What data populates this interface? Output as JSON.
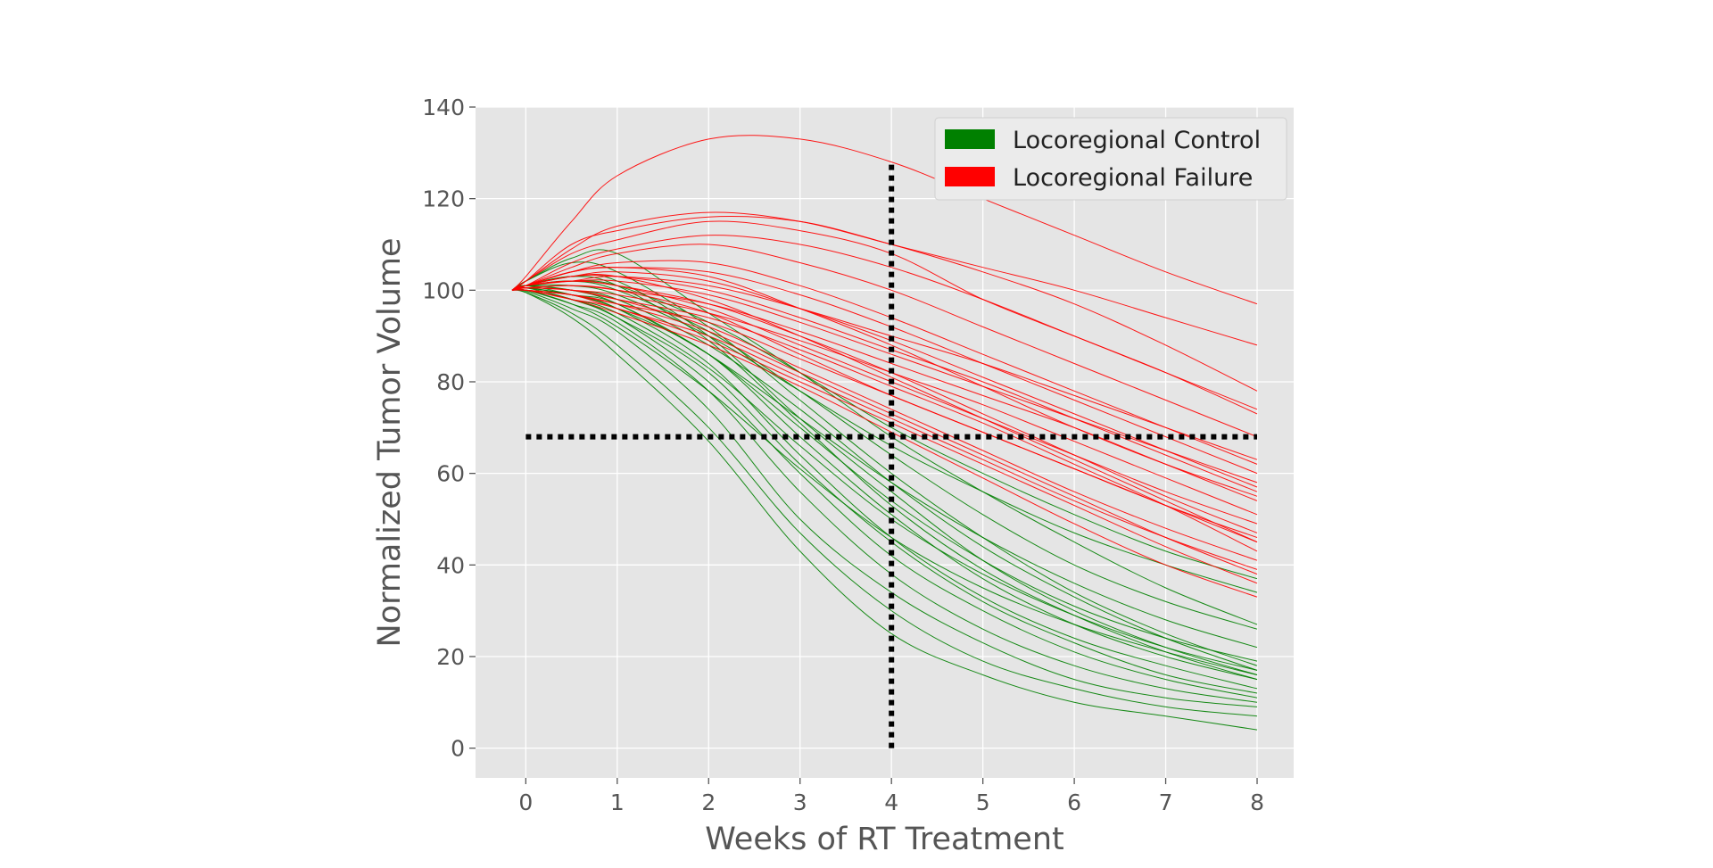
{
  "chart_data": {
    "type": "line",
    "title": "",
    "xlabel": "Weeks of RT Treatment",
    "ylabel": "Normalized Tumor Volume",
    "xlim": [
      -0.55,
      8.4
    ],
    "ylim": [
      -6.5,
      140
    ],
    "xticks": [
      0,
      1,
      2,
      3,
      4,
      5,
      6,
      7,
      8
    ],
    "yticks": [
      0,
      20,
      40,
      60,
      80,
      100,
      120,
      140
    ],
    "grid": true,
    "background": "#e5e5e5",
    "legend": {
      "placement": "top-right",
      "entries": [
        {
          "label": "Locoregional Control",
          "color": "#008000"
        },
        {
          "label": "Locoregional Failure",
          "color": "#ff0000"
        }
      ]
    },
    "reference_lines": [
      {
        "orientation": "horizontal",
        "y": 68,
        "x_from": 0,
        "x_to": 8,
        "style": "dotted",
        "color": "#000000"
      },
      {
        "orientation": "vertical",
        "x": 4,
        "y_from": 0,
        "y_to": 128,
        "style": "dotted",
        "color": "#000000"
      }
    ],
    "x": [
      -0.15,
      0,
      0.5,
      1,
      2,
      3,
      4,
      5,
      6,
      7,
      8
    ],
    "series": [
      {
        "group": "Locoregional Control",
        "color": "#008000",
        "values": [
          100,
          99.5,
          95,
          88,
          70,
          47,
          30,
          19,
          13,
          9,
          7
        ]
      },
      {
        "group": "Locoregional Control",
        "color": "#008000",
        "values": [
          100,
          99.8,
          96,
          91,
          74,
          50,
          34,
          23,
          15,
          11,
          9
        ]
      },
      {
        "group": "Locoregional Control",
        "color": "#008000",
        "values": [
          100,
          99.5,
          94,
          86,
          67,
          43,
          25,
          16,
          10,
          7,
          4
        ]
      },
      {
        "group": "Locoregional Control",
        "color": "#008000",
        "values": [
          100,
          100,
          97,
          93,
          78,
          56,
          38,
          26,
          18,
          13,
          10
        ]
      },
      {
        "group": "Locoregional Control",
        "color": "#008000",
        "values": [
          100,
          100.5,
          98,
          94,
          82,
          62,
          45,
          32,
          23,
          16,
          12
        ]
      },
      {
        "group": "Locoregional Control",
        "color": "#008000",
        "values": [
          100,
          101,
          99,
          96,
          86,
          68,
          51,
          37,
          27,
          20,
          15
        ]
      },
      {
        "group": "Locoregional Control",
        "color": "#008000",
        "values": [
          100,
          101,
          103,
          102,
          90,
          72,
          56,
          41,
          30,
          22,
          16
        ]
      },
      {
        "group": "Locoregional Control",
        "color": "#008000",
        "values": [
          100,
          102,
          106,
          104,
          92,
          76,
          60,
          46,
          34,
          25,
          18
        ]
      },
      {
        "group": "Locoregional Control",
        "color": "#008000",
        "values": [
          100,
          101,
          100,
          98,
          88,
          74,
          58,
          44,
          33,
          24,
          17
        ]
      },
      {
        "group": "Locoregional Control",
        "color": "#008000",
        "values": [
          100,
          100.5,
          99,
          97,
          86,
          70,
          54,
          41,
          31,
          24,
          19
        ]
      },
      {
        "group": "Locoregional Control",
        "color": "#008000",
        "values": [
          100,
          101,
          102,
          100,
          91,
          78,
          64,
          51,
          40,
          32,
          26
        ]
      },
      {
        "group": "Locoregional Control",
        "color": "#008000",
        "values": [
          100,
          102,
          107,
          108,
          95,
          82,
          68,
          56,
          45,
          35,
          27
        ]
      },
      {
        "group": "Locoregional Control",
        "color": "#008000",
        "values": [
          100,
          100,
          98,
          95,
          83,
          66,
          50,
          38,
          29,
          22,
          17
        ]
      },
      {
        "group": "Locoregional Control",
        "color": "#008000",
        "values": [
          100,
          100,
          97,
          92,
          78,
          61,
          46,
          35,
          27,
          21,
          16
        ]
      },
      {
        "group": "Locoregional Control",
        "color": "#008000",
        "values": [
          100,
          101,
          101,
          99,
          90,
          78,
          66,
          56,
          47,
          40,
          34
        ]
      },
      {
        "group": "Locoregional Control",
        "color": "#008000",
        "values": [
          100,
          101,
          102,
          101,
          93,
          82,
          70,
          60,
          51,
          43,
          37
        ]
      },
      {
        "group": "Locoregional Control",
        "color": "#008000",
        "values": [
          100,
          100,
          98,
          94,
          80,
          60,
          42,
          30,
          21,
          15,
          11
        ]
      },
      {
        "group": "Locoregional Control",
        "color": "#008000",
        "values": [
          100,
          100.5,
          99,
          96,
          84,
          64,
          46,
          33,
          24,
          18,
          13
        ]
      },
      {
        "group": "Locoregional Control",
        "color": "#008000",
        "values": [
          100,
          101,
          103,
          101,
          89,
          71,
          53,
          39,
          29,
          21,
          15
        ]
      },
      {
        "group": "Locoregional Control",
        "color": "#008000",
        "values": [
          100,
          101,
          100,
          97,
          86,
          72,
          58,
          46,
          36,
          28,
          22
        ]
      },
      {
        "group": "Locoregional Failure",
        "color": "#ff0000",
        "values": [
          100,
          102,
          108,
          111,
          115,
          113,
          108,
          98,
          90,
          82,
          74
        ]
      },
      {
        "group": "Locoregional Failure",
        "color": "#ff0000",
        "values": [
          100,
          102,
          110,
          113,
          116,
          115,
          110,
          104,
          97,
          88,
          78
        ]
      },
      {
        "group": "Locoregional Failure",
        "color": "#ff0000",
        "values": [
          100,
          103,
          115,
          125,
          133,
          133,
          128,
          120,
          112,
          104,
          97
        ]
      },
      {
        "group": "Locoregional Failure",
        "color": "#ff0000",
        "values": [
          100,
          102,
          109,
          114,
          117,
          115,
          110,
          105,
          100,
          94,
          88
        ]
      },
      {
        "group": "Locoregional Failure",
        "color": "#ff0000",
        "values": [
          100,
          101,
          104,
          105,
          103,
          96,
          88,
          79,
          70,
          62,
          55
        ]
      },
      {
        "group": "Locoregional Failure",
        "color": "#ff0000",
        "values": [
          100,
          101,
          102,
          101,
          96,
          88,
          80,
          72,
          64,
          56,
          49
        ]
      },
      {
        "group": "Locoregional Failure",
        "color": "#ff0000",
        "values": [
          100,
          101,
          103,
          103,
          98,
          90,
          81,
          72,
          63,
          54,
          45
        ]
      },
      {
        "group": "Locoregional Failure",
        "color": "#ff0000",
        "values": [
          100,
          100.5,
          100,
          98,
          92,
          83,
          74,
          65,
          56,
          48,
          41
        ]
      },
      {
        "group": "Locoregional Failure",
        "color": "#ff0000",
        "values": [
          100,
          101,
          104,
          106,
          106,
          101,
          94,
          86,
          78,
          70,
          62
        ]
      },
      {
        "group": "Locoregional Failure",
        "color": "#ff0000",
        "values": [
          100,
          101,
          105,
          108,
          110,
          106,
          100,
          92,
          84,
          76,
          68
        ]
      },
      {
        "group": "Locoregional Failure",
        "color": "#ff0000",
        "values": [
          100,
          100,
          99,
          96,
          90,
          81,
          72,
          63,
          54,
          46,
          39
        ]
      },
      {
        "group": "Locoregional Failure",
        "color": "#ff0000",
        "values": [
          100,
          101,
          102,
          102,
          99,
          93,
          86,
          79,
          72,
          65,
          58
        ]
      },
      {
        "group": "Locoregional Failure",
        "color": "#ff0000",
        "values": [
          100,
          100.5,
          101,
          100,
          95,
          86,
          77,
          69,
          61,
          53,
          46
        ]
      },
      {
        "group": "Locoregional Failure",
        "color": "#ff0000",
        "values": [
          100,
          101,
          103,
          104,
          102,
          96,
          89,
          81,
          73,
          65,
          57
        ]
      },
      {
        "group": "Locoregional Failure",
        "color": "#ff0000",
        "values": [
          100,
          100,
          99,
          97,
          93,
          85,
          77,
          69,
          61,
          53,
          45
        ]
      },
      {
        "group": "Locoregional Failure",
        "color": "#ff0000",
        "values": [
          100,
          101,
          102,
          101,
          97,
          90,
          82,
          73,
          64,
          55,
          47
        ]
      },
      {
        "group": "Locoregional Failure",
        "color": "#ff0000",
        "values": [
          100,
          101,
          106,
          109,
          112,
          110,
          105,
          98,
          90,
          82,
          73
        ]
      },
      {
        "group": "Locoregional Failure",
        "color": "#ff0000",
        "values": [
          100,
          100.5,
          100,
          98,
          94,
          87,
          79,
          71,
          62,
          53,
          43
        ]
      },
      {
        "group": "Locoregional Failure",
        "color": "#ff0000",
        "values": [
          100,
          100,
          98,
          95,
          88,
          79,
          69,
          59,
          49,
          40,
          33
        ]
      },
      {
        "group": "Locoregional Failure",
        "color": "#ff0000",
        "values": [
          100,
          101,
          103,
          103,
          100,
          94,
          87,
          80,
          72,
          64,
          56
        ]
      },
      {
        "group": "Locoregional Failure",
        "color": "#ff0000",
        "values": [
          100,
          100.5,
          101,
          100,
          97,
          91,
          84,
          77,
          70,
          62,
          54
        ]
      },
      {
        "group": "Locoregional Failure",
        "color": "#ff0000",
        "values": [
          100,
          100,
          99,
          97,
          91,
          82,
          73,
          64,
          55,
          46,
          38
        ]
      },
      {
        "group": "Locoregional Failure",
        "color": "#ff0000",
        "values": [
          100,
          101,
          104,
          105,
          104,
          99,
          92,
          84,
          76,
          68,
          60
        ]
      },
      {
        "group": "Locoregional Failure",
        "color": "#ff0000",
        "values": [
          100,
          100,
          98,
          96,
          89,
          80,
          71,
          62,
          53,
          44,
          36
        ]
      },
      {
        "group": "Locoregional Failure",
        "color": "#ff0000",
        "values": [
          100,
          101,
          102,
          103,
          101,
          96,
          90,
          84,
          77,
          70,
          63
        ]
      },
      {
        "group": "Locoregional Failure",
        "color": "#ff0000",
        "values": [
          100,
          100.5,
          100,
          99,
          95,
          89,
          82,
          75,
          67,
          59,
          51
        ]
      }
    ]
  }
}
